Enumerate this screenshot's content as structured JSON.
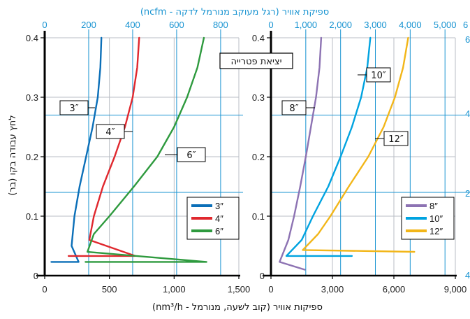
{
  "chart_data": {
    "type": "line",
    "top_axis_title": "ספיקת אוויר (רגל מעוקב מנורמל לדקה - ncfm)",
    "bottom_axis_title": "ספיקות אוויר (קוב לשעה, מנורמל - nm³/h)",
    "ylabel": "לחץ עבודה בקו (בר)",
    "annotation": "יציאת פטרייה",
    "ylim": [
      0,
      0.4
    ],
    "y_ticks": [
      {
        "value": 0,
        "label": "0"
      },
      {
        "value": 0.1,
        "label": "0.1"
      },
      {
        "value": 0.2,
        "label": "0.2"
      },
      {
        "value": 0.3,
        "label": "0.3"
      },
      {
        "value": 0.4,
        "label": "0.4"
      }
    ],
    "panels": [
      {
        "id": "small",
        "xlim": [
          0,
          1500
        ],
        "x_ticks": [
          {
            "value": 0,
            "label": "0"
          },
          {
            "value": 500,
            "label": "500"
          },
          {
            "value": 1000,
            "label": "1,000"
          },
          {
            "value": 1500,
            "label": "1,500"
          }
        ],
        "top_ticks": [
          {
            "value": 0,
            "label": "0"
          },
          {
            "value": 200,
            "label": "200"
          },
          {
            "value": 400,
            "label": "400"
          },
          {
            "value": 600,
            "label": "600"
          },
          {
            "value": 800,
            "label": "800"
          }
        ],
        "top_tick_labels_end": "",
        "series": [
          {
            "name": "3″",
            "color": "#0b6fb8",
            "points": [
              [
                51,
                0.023
              ],
              [
                262,
                0.023
              ],
              [
                208,
                0.05
              ],
              [
                230,
                0.1
              ],
              [
                270,
                0.15
              ],
              [
                320,
                0.2
              ],
              [
                370,
                0.25
              ],
              [
                410,
                0.3
              ],
              [
                430,
                0.35
              ],
              [
                438,
                0.4
              ]
            ]
          },
          {
            "name": "4″",
            "color": "#e0282e",
            "points": [
              [
                184,
                0.033
              ],
              [
                700,
                0.033
              ],
              [
                345,
                0.06
              ],
              [
                380,
                0.1
              ],
              [
                450,
                0.15
              ],
              [
                540,
                0.2
              ],
              [
                620,
                0.25
              ],
              [
                680,
                0.3
              ],
              [
                715,
                0.35
              ],
              [
                730,
                0.4
              ]
            ]
          },
          {
            "name": "6″",
            "color": "#2e9a3e",
            "points": [
              [
                315,
                0.023
              ],
              [
                1250,
                0.023
              ],
              [
                330,
                0.04
              ],
              [
                380,
                0.07
              ],
              [
                500,
                0.1
              ],
              [
                690,
                0.15
              ],
              [
                870,
                0.2
              ],
              [
                1000,
                0.25
              ],
              [
                1100,
                0.3
              ],
              [
                1180,
                0.35
              ],
              [
                1230,
                0.4
              ]
            ]
          }
        ],
        "labels": [
          {
            "text": "3″",
            "series": "3″",
            "ref_x": 345,
            "ref_y": 0.28
          },
          {
            "text": "4″",
            "series": "4″",
            "ref_x": 640,
            "ref_y": 0.258
          },
          {
            "text": "6″",
            "series": "6″",
            "ref_x": 940,
            "ref_y": 0.215
          }
        ],
        "legend": [
          "3″",
          "4″",
          "6″"
        ],
        "legend_position": "bottom-right"
      },
      {
        "id": "large",
        "xlim": [
          0,
          9000
        ],
        "x_ticks": [
          {
            "value": 0,
            "label": "0"
          },
          {
            "value": 3000,
            "label": "3,000"
          },
          {
            "value": 6000,
            "label": "6,000"
          },
          {
            "value": 9000,
            "label": "9,000"
          }
        ],
        "top_ticks": [
          {
            "value": 0,
            "label": "0"
          },
          {
            "value": 1000,
            "label": "1,000"
          },
          {
            "value": 2000,
            "label": "2,000"
          },
          {
            "value": 3000,
            "label": "3,000"
          },
          {
            "value": 4000,
            "label": "4,000"
          },
          {
            "value": 5000,
            "label": "5,000"
          }
        ],
        "top_tick_labels_end": "6",
        "right_edge_labels": [
          "6",
          "4",
          "2",
          "4"
        ],
        "series": [
          {
            "name": "8″",
            "color": "#8d73b3",
            "points": [
              [
                1650,
                0.01
              ],
              [
                420,
                0.023
              ],
              [
                850,
                0.06
              ],
              [
                1130,
                0.1
              ],
              [
                1430,
                0.15
              ],
              [
                1700,
                0.2
              ],
              [
                1950,
                0.25
              ],
              [
                2200,
                0.3
              ],
              [
                2370,
                0.35
              ],
              [
                2450,
                0.4
              ]
            ]
          },
          {
            "name": "10″",
            "color": "#00a3e0",
            "points": [
              [
                3950,
                0.033
              ],
              [
                750,
                0.033
              ],
              [
                1500,
                0.06
              ],
              [
                2050,
                0.1
              ],
              [
                2800,
                0.15
              ],
              [
                3400,
                0.2
              ],
              [
                3950,
                0.25
              ],
              [
                4400,
                0.3
              ],
              [
                4700,
                0.35
              ],
              [
                4850,
                0.4
              ]
            ]
          },
          {
            "name": "12″",
            "color": "#f2b619",
            "points": [
              [
                7000,
                0.04
              ],
              [
                1550,
                0.043
              ],
              [
                2300,
                0.07
              ],
              [
                2900,
                0.1
              ],
              [
                3800,
                0.15
              ],
              [
                4750,
                0.2
              ],
              [
                5500,
                0.25
              ],
              [
                6050,
                0.3
              ],
              [
                6450,
                0.35
              ],
              [
                6700,
                0.4
              ]
            ]
          }
        ],
        "labels": [
          {
            "text": "10″",
            "series": "10″",
            "ref_x": 5280,
            "ref_y": 0.33
          },
          {
            "text": "8″",
            "series": "8″",
            "ref_x": 1870,
            "ref_y": 0.28
          },
          {
            "text": "12″",
            "series": "12″",
            "ref_x": 5400,
            "ref_y": 0.232
          }
        ],
        "legend": [
          "8″",
          "10″",
          "12″"
        ],
        "legend_position": "bottom-right"
      }
    ],
    "colors": {
      "grid": "#b9bdc4",
      "blue_grid": "#1793d1",
      "axis": "#000000"
    }
  }
}
